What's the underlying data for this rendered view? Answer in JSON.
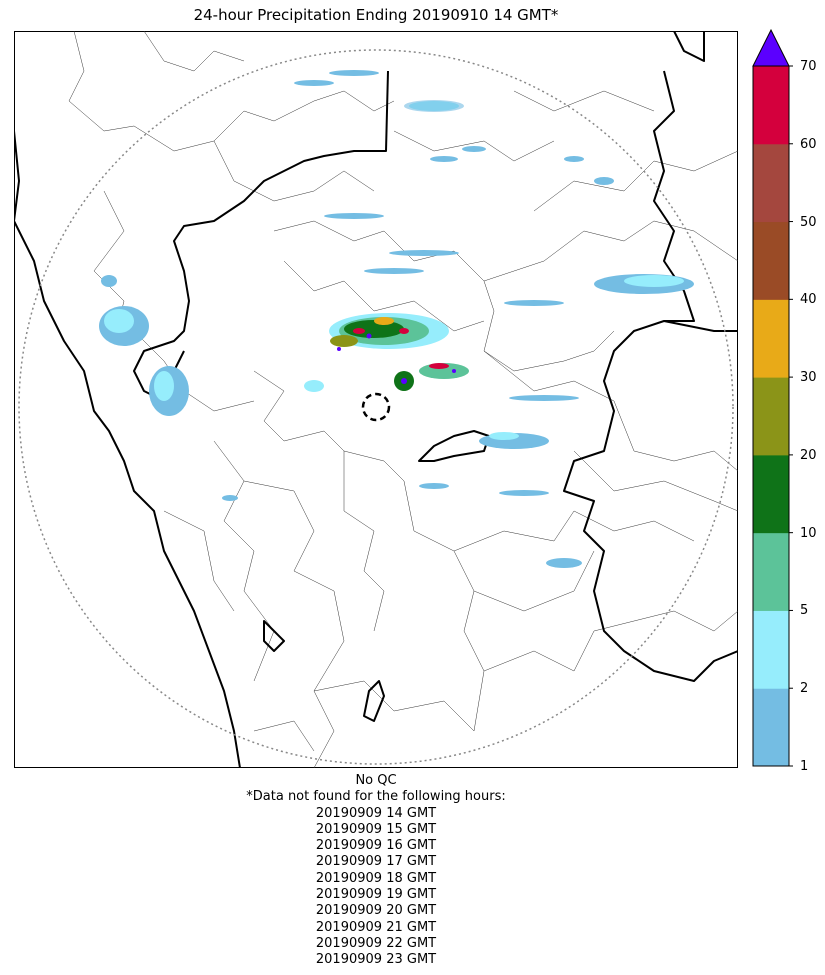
{
  "title": "24-hour Precipitation Ending 20190910 14 GMT*",
  "colorbar": {
    "ticks": [
      "1",
      "2",
      "5",
      "10",
      "20",
      "30",
      "40",
      "50",
      "60",
      "70"
    ],
    "colors": [
      "#74bde3",
      "#96edfc",
      "#5cc399",
      "#0f7318",
      "#8b9418",
      "#e8aa18",
      "#9a4b26",
      "#a4473e",
      "#d4003d"
    ],
    "extend_color": "#5b00ff"
  },
  "footer": {
    "qc_label": "No QC",
    "missing_header": "*Data not found for the following hours:",
    "missing_hours": [
      "20190909 14 GMT",
      "20190909 15 GMT",
      "20190909 16 GMT",
      "20190909 17 GMT",
      "20190909 18 GMT",
      "20190909 19 GMT",
      "20190909 20 GMT",
      "20190909 21 GMT",
      "20190909 22 GMT",
      "20190909 23 GMT"
    ]
  }
}
